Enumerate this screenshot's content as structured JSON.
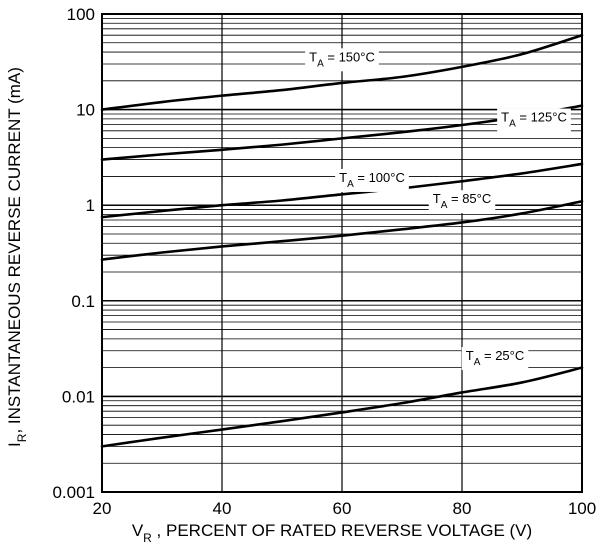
{
  "chart_data": {
    "type": "line",
    "title": "",
    "xlabel": {
      "main": "V",
      "sub": "R",
      "rest": " , PERCENT OF RATED REVERSE VOLTAGE (V)"
    },
    "ylabel": {
      "main": "I",
      "sub": "R",
      "rest": ", INSTANTANEOUS REVERSE CURRENT (mA)"
    },
    "xlim": [
      20,
      100
    ],
    "ylim": [
      0.001,
      100
    ],
    "yscale": "log",
    "grid": true,
    "x_ticks": [
      {
        "value": 20,
        "label": "20"
      },
      {
        "value": 40,
        "label": "40"
      },
      {
        "value": 60,
        "label": "60"
      },
      {
        "value": 80,
        "label": "80"
      },
      {
        "value": 100,
        "label": "100"
      }
    ],
    "y_ticks": [
      {
        "value": 100,
        "label": "100"
      },
      {
        "value": 10,
        "label": "10"
      },
      {
        "value": 1,
        "label": "1"
      },
      {
        "value": 0.1,
        "label": "0.1"
      },
      {
        "value": 0.01,
        "label": "0.01"
      },
      {
        "value": 0.001,
        "label": "0.001"
      }
    ],
    "series": [
      {
        "name": "T_A = 150°C",
        "main": "T",
        "sub": "A",
        "rest": " = 150°C",
        "label_x": 60,
        "label_y": 32,
        "x": [
          20,
          30,
          40,
          50,
          60,
          70,
          80,
          90,
          100
        ],
        "y": [
          10,
          12,
          14,
          16,
          19,
          22,
          28,
          38,
          60
        ]
      },
      {
        "name": "T_A = 125°C",
        "main": "T",
        "sub": "A",
        "rest": " = 125°C",
        "label_x": 92,
        "label_y": 7.5,
        "x": [
          20,
          30,
          40,
          50,
          60,
          70,
          80,
          90,
          100
        ],
        "y": [
          3,
          3.4,
          3.8,
          4.3,
          5,
          5.8,
          6.9,
          8.5,
          11
        ]
      },
      {
        "name": "T_A = 100°C",
        "main": "T",
        "sub": "A",
        "rest": " = 100°C",
        "label_x": 65,
        "label_y": 1.75,
        "x": [
          20,
          30,
          40,
          50,
          60,
          70,
          80,
          90,
          100
        ],
        "y": [
          0.75,
          0.87,
          1,
          1.12,
          1.3,
          1.5,
          1.78,
          2.15,
          2.7
        ]
      },
      {
        "name": "T_A = 85°C",
        "main": "T",
        "sub": "A",
        "rest": " = 85°C",
        "label_x": 80,
        "label_y": 1.05,
        "x": [
          20,
          30,
          40,
          50,
          60,
          70,
          80,
          90,
          100
        ],
        "y": [
          0.27,
          0.32,
          0.37,
          0.42,
          0.48,
          0.56,
          0.66,
          0.82,
          1.1
        ]
      },
      {
        "name": "T_A = 25°C",
        "main": "T",
        "sub": "A",
        "rest": " = 25°C",
        "label_x": 85.5,
        "label_y": 0.024,
        "x": [
          20,
          30,
          40,
          50,
          60,
          70,
          80,
          90,
          100
        ],
        "y": [
          0.003,
          0.0037,
          0.0045,
          0.0055,
          0.0068,
          0.0085,
          0.011,
          0.014,
          0.02
        ]
      }
    ]
  }
}
